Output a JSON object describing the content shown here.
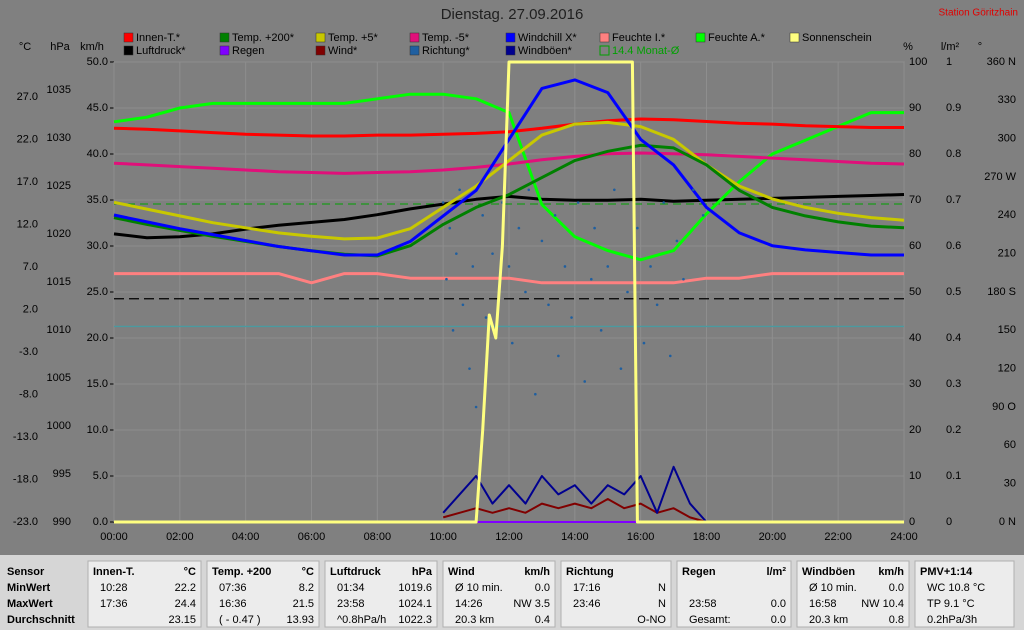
{
  "chart_data": {
    "type": "line",
    "title": "Dienstag. 27.09.2016",
    "station": "Station Göritzhain",
    "grid": true,
    "xlim": [
      0,
      24
    ],
    "xticks": [
      {
        "value": 0,
        "label": "00:00"
      },
      {
        "value": 2,
        "label": "02:00"
      },
      {
        "value": 4,
        "label": "04:00"
      },
      {
        "value": 6,
        "label": "06:00"
      },
      {
        "value": 8,
        "label": "08:00"
      },
      {
        "value": 10,
        "label": "10:00"
      },
      {
        "value": 12,
        "label": "12:00"
      },
      {
        "value": 14,
        "label": "14:00"
      },
      {
        "value": 16,
        "label": "16:00"
      },
      {
        "value": 18,
        "label": "18:00"
      },
      {
        "value": 20,
        "label": "20:00"
      },
      {
        "value": 22,
        "label": "22:00"
      },
      {
        "value": 24,
        "label": "24:00"
      }
    ],
    "x": [
      0,
      1,
      2,
      3,
      4,
      5,
      6,
      7,
      8,
      9,
      10,
      11,
      12,
      13,
      14,
      15,
      16,
      17,
      18,
      19,
      20,
      21,
      22,
      23,
      24
    ],
    "axes": [
      {
        "id": "C",
        "title": "°C",
        "ylim": [
          -23,
          31.1
        ],
        "yticks": [
          {
            "value": -23,
            "label": "-23.0"
          },
          {
            "value": -18,
            "label": "-18.0"
          },
          {
            "value": -13,
            "label": "-13.0"
          },
          {
            "value": -8,
            "label": "-8.0"
          },
          {
            "value": -3,
            "label": "-3.0"
          },
          {
            "value": 2,
            "label": "2.0"
          },
          {
            "value": 7,
            "label": "7.0"
          },
          {
            "value": 12,
            "label": "12.0"
          },
          {
            "value": 17,
            "label": "17.0"
          },
          {
            "value": 22,
            "label": "22.0"
          },
          {
            "value": 27,
            "label": "27.0"
          }
        ]
      },
      {
        "id": "hPa",
        "title": "hPa",
        "ylim": [
          990,
          1037.9
        ],
        "yticks": [
          990,
          995,
          1000,
          1005,
          1010,
          1015,
          1020,
          1025,
          1030,
          1035
        ]
      },
      {
        "id": "kmh",
        "title": "km/h",
        "ylim": [
          0,
          50
        ],
        "yticks": [
          {
            "value": 0,
            "label": "0.0"
          },
          {
            "value": 5,
            "label": "5.0"
          },
          {
            "value": 10,
            "label": "10.0"
          },
          {
            "value": 15,
            "label": "15.0"
          },
          {
            "value": 20,
            "label": "20.0"
          },
          {
            "value": 25,
            "label": "25.0"
          },
          {
            "value": 30,
            "label": "30.0"
          },
          {
            "value": 35,
            "label": "35.0"
          },
          {
            "value": 40,
            "label": "40.0"
          },
          {
            "value": 45,
            "label": "45.0"
          },
          {
            "value": 50,
            "label": "50.0"
          }
        ]
      },
      {
        "id": "pct",
        "title": "%",
        "ylim": [
          0,
          100
        ],
        "yticks": [
          0,
          10,
          20,
          30,
          40,
          50,
          60,
          70,
          80,
          90,
          100
        ]
      },
      {
        "id": "lm2",
        "title": "l/m²",
        "ylim": [
          0,
          1
        ],
        "yticks": [
          0,
          0.1,
          0.2,
          0.3,
          0.4,
          0.5,
          0.6,
          0.7,
          0.8,
          0.9,
          1
        ]
      },
      {
        "id": "deg",
        "title": "°",
        "ylim": [
          0,
          360
        ],
        "yticks": [
          {
            "value": 0,
            "label": "0 N"
          },
          30,
          60,
          {
            "value": 90,
            "label": "90 O"
          },
          120,
          150,
          {
            "value": 180,
            "label": "180 S"
          },
          210,
          240,
          {
            "value": 270,
            "label": "270 W"
          },
          300,
          330,
          {
            "value": 360,
            "label": "360 N"
          }
        ]
      }
    ],
    "series": [
      {
        "name": "Innen-T.*",
        "color": "#ff0000",
        "axis": "C",
        "type": "line",
        "values": [
          23.3,
          23.2,
          23.0,
          22.8,
          22.6,
          22.5,
          22.4,
          22.4,
          22.5,
          22.5,
          22.6,
          22.7,
          22.9,
          23.3,
          23.8,
          24.2,
          24.4,
          24.3,
          24.1,
          23.9,
          23.8,
          23.6,
          23.5,
          23.4,
          23.4
        ]
      },
      {
        "name": "Temp. +200*",
        "color": "#008000",
        "axis": "C",
        "type": "line",
        "values": [
          12.8,
          12.0,
          11.3,
          10.6,
          10.0,
          9.4,
          8.9,
          8.5,
          8.3,
          9.5,
          12.0,
          14.0,
          15.5,
          17.5,
          19.5,
          20.6,
          21.3,
          21.0,
          19.0,
          16.0,
          14.0,
          13.0,
          12.3,
          11.8,
          11.6
        ]
      },
      {
        "name": "Temp. +5*",
        "color": "#c8c800",
        "axis": "C",
        "type": "line",
        "values": [
          14.6,
          13.8,
          13.0,
          12.2,
          11.6,
          11.0,
          10.6,
          10.3,
          10.4,
          11.5,
          14.0,
          16.5,
          19.5,
          22.5,
          23.8,
          24.0,
          23.5,
          22.0,
          19.0,
          16.5,
          15.0,
          14.0,
          13.3,
          12.8,
          12.5
        ]
      },
      {
        "name": "Temp. -5*",
        "color": "#e0107a",
        "axis": "C",
        "type": "line",
        "values": [
          19.2,
          19.0,
          18.8,
          18.6,
          18.4,
          18.2,
          18.1,
          18.0,
          18.1,
          18.2,
          18.4,
          18.7,
          19.1,
          19.6,
          20.0,
          20.3,
          20.4,
          20.3,
          20.2,
          20.0,
          19.8,
          19.6,
          19.4,
          19.2,
          19.1
        ]
      },
      {
        "name": "Windchill X*",
        "color": "#0000ff",
        "axis": "C",
        "type": "line",
        "values": [
          13.1,
          12.3,
          11.5,
          10.8,
          10.1,
          9.4,
          8.9,
          8.4,
          8.4,
          10.0,
          13.0,
          16.0,
          22.0,
          28.0,
          29.0,
          27.5,
          22.0,
          19.0,
          14.0,
          11.0,
          9.5,
          9.0,
          8.7,
          8.4,
          8.4
        ]
      },
      {
        "name": "Feuchte I.*",
        "color": "#ff8080",
        "axis": "pct",
        "type": "line",
        "values": [
          54,
          54,
          54,
          54,
          54,
          54,
          52,
          54,
          54,
          53,
          53,
          53,
          53,
          52,
          52,
          52,
          52,
          52,
          53,
          53,
          54,
          54,
          54,
          54,
          54
        ]
      },
      {
        "name": "Feuchte A.*",
        "color": "#00ff00",
        "axis": "pct",
        "type": "line",
        "values": [
          87,
          88,
          90,
          91,
          91,
          91,
          91,
          91,
          92,
          93,
          93,
          92,
          89,
          69,
          62,
          59,
          57,
          59,
          67,
          74,
          80,
          83,
          86,
          89,
          89
        ]
      },
      {
        "name": "Sonnenschein",
        "color": "#ffff80",
        "axis": "pct",
        "type": "line",
        "x": [
          0,
          11.0,
          11.2,
          11.4,
          11.6,
          11.8,
          12.0,
          15.75,
          15.9,
          24
        ],
        "values": [
          0,
          0,
          20,
          45,
          40,
          60,
          100,
          100,
          0,
          0
        ]
      },
      {
        "name": "Luftdruck*",
        "color": "#000000",
        "axis": "hPa",
        "type": "line",
        "values": [
          1020.0,
          1019.6,
          1019.7,
          1020.0,
          1020.5,
          1020.9,
          1021.2,
          1021.5,
          1022.0,
          1022.6,
          1023.1,
          1023.6,
          1023.9,
          1023.6,
          1023.5,
          1023.5,
          1023.6,
          1023.4,
          1023.5,
          1023.6,
          1023.7,
          1023.8,
          1023.9,
          1024.0,
          1024.1
        ]
      },
      {
        "name": "Regen",
        "color": "#8000ff",
        "axis": "lm2",
        "type": "line",
        "x": [
          11,
          17
        ],
        "values": [
          0,
          0
        ]
      },
      {
        "name": "Wind*",
        "color": "#800000",
        "axis": "kmh",
        "type": "line",
        "x": [
          10,
          10.5,
          11,
          11.5,
          12,
          12.5,
          13,
          13.5,
          14,
          14.5,
          15,
          15.5,
          16,
          16.5,
          17,
          17.5,
          18
        ],
        "values": [
          0.5,
          1,
          1.5,
          1,
          1.5,
          1,
          2,
          1.5,
          2,
          1.5,
          2.5,
          1.5,
          2,
          1,
          1.5,
          0.5,
          0
        ]
      },
      {
        "name": "Richtung*",
        "color": "#1f5fa0",
        "axis": "deg",
        "type": "scatter",
        "x": [
          10.0,
          10.1,
          10.2,
          10.3,
          10.4,
          10.5,
          10.6,
          10.8,
          10.9,
          11.0,
          11.2,
          11.3,
          11.5,
          11.7,
          11.8,
          12.0,
          12.1,
          12.3,
          12.5,
          12.6,
          12.8,
          13.0,
          13.2,
          13.4,
          13.5,
          13.7,
          13.9,
          14.1,
          14.3,
          14.5,
          14.6,
          14.8,
          15.0,
          15.2,
          15.4,
          15.6,
          15.9,
          16.1,
          16.3,
          16.5,
          16.7,
          16.9,
          17.1,
          17.3,
          17.6,
          17.9
        ],
        "values": [
          250,
          190,
          230,
          150,
          210,
          260,
          170,
          120,
          200,
          90,
          240,
          160,
          210,
          180,
          250,
          200,
          140,
          230,
          180,
          260,
          100,
          220,
          170,
          240,
          130,
          200,
          160,
          250,
          110,
          190,
          230,
          150,
          200,
          260,
          120,
          180,
          230,
          140,
          200,
          170,
          250,
          130,
          220,
          190,
          260,
          240
        ]
      },
      {
        "name": "Windböen*",
        "color": "#000090",
        "axis": "kmh",
        "type": "line",
        "x": [
          10,
          10.5,
          11,
          11.5,
          12,
          12.5,
          13,
          13.5,
          14,
          14.5,
          15,
          15.5,
          16,
          16.5,
          17,
          17.5,
          18
        ],
        "values": [
          1,
          3,
          5,
          2,
          4,
          2,
          5,
          3,
          4,
          2,
          4,
          3,
          5,
          1,
          6,
          2,
          0
        ]
      }
    ],
    "mean_line": {
      "name": "14.4 Monat-Ø",
      "color": "#00a000",
      "axis": "C",
      "value": 14.4
    },
    "reference_lines": [
      {
        "axis": "hPa",
        "value": 1013.25,
        "color": "#000000"
      },
      {
        "axis": "C",
        "value": 0,
        "color": "#4a9aa0"
      }
    ]
  },
  "table": {
    "row_labels": [
      "Sensor",
      "MinWert",
      "MaxWert",
      "Durchschnitt"
    ],
    "groups": [
      {
        "name": "Innen-T.",
        "unit": "°C",
        "rows": [
          [
            "10:28",
            "22.2"
          ],
          [
            "17:36",
            "24.4"
          ],
          [
            null,
            "23.15"
          ]
        ]
      },
      {
        "name": "Temp. +200",
        "unit": "°C",
        "rows": [
          [
            "07:36",
            "8.2"
          ],
          [
            "16:36",
            "21.5"
          ],
          [
            "( - 0.47 )",
            "13.93"
          ]
        ]
      },
      {
        "name": "Luftdruck",
        "unit": "hPa",
        "rows": [
          [
            "01:34",
            "1019.6"
          ],
          [
            "23:58",
            "1024.1"
          ],
          [
            "^0.8hPa/h",
            "1022.3"
          ]
        ]
      },
      {
        "name": "Wind",
        "unit": "km/h",
        "rows": [
          [
            "Ø 10 min.",
            "0.0"
          ],
          [
            "14:26",
            "NW 3.5"
          ],
          [
            "20.3 km",
            "0.4"
          ]
        ]
      },
      {
        "name": "Richtung",
        "unit": null,
        "rows": [
          [
            "17:16",
            "N"
          ],
          [
            "23:46",
            "N"
          ],
          [
            null,
            "O-NO"
          ]
        ]
      },
      {
        "name": "Regen",
        "unit": "l/m²",
        "rows": [
          [
            null,
            null
          ],
          [
            "23:58",
            "0.0"
          ],
          [
            "Gesamt:",
            "0.0"
          ]
        ]
      },
      {
        "name": "Windböen",
        "unit": "km/h",
        "rows": [
          [
            "Ø 10 min.",
            "0.0"
          ],
          [
            "16:58",
            "NW 10.4"
          ],
          [
            "20.3 km",
            "0.8"
          ]
        ]
      },
      {
        "name": "PMV+1:14",
        "unit": null,
        "rows": [
          [
            "WC 10.8 °C",
            null
          ],
          [
            "TP 9.1 °C",
            null
          ],
          [
            "0.2hPa/3h",
            null
          ]
        ]
      }
    ]
  }
}
